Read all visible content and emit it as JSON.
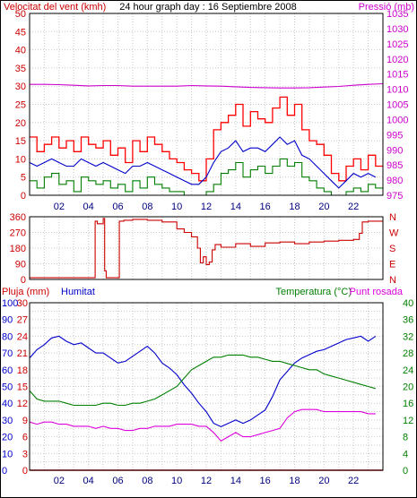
{
  "page": {
    "title": "24 hour graph day : 16 Septiembre 2008",
    "border_color": "#000000"
  },
  "chart_data": [
    {
      "type": "line",
      "panel": "wind-pressure",
      "title": "24 hour graph day : 16 Septiembre 2008",
      "ylabel_left": "Velocitat del vent (kmh)",
      "ylabel_right": "Pressió (mb)",
      "x_ticks": [
        "02",
        "04",
        "06",
        "08",
        "10",
        "12",
        "14",
        "16",
        "18",
        "20",
        "22"
      ],
      "xlim": [
        0,
        24
      ],
      "ylim_left": [
        0,
        50
      ],
      "ylim_right": [
        975,
        1035
      ],
      "yticks_left": [
        0,
        5,
        10,
        15,
        20,
        25,
        30,
        35,
        40,
        45,
        50
      ],
      "yticks_right": [
        975,
        980,
        985,
        990,
        995,
        1000,
        1005,
        1010,
        1015,
        1020,
        1025,
        1030,
        1035
      ],
      "grid": true,
      "series": [
        {
          "key": "gust",
          "axis": "left",
          "color": "#ff0000",
          "step": true,
          "x": [
            0,
            0.5,
            1,
            1.5,
            2,
            2.5,
            3,
            3.5,
            4,
            4.5,
            5,
            5.5,
            6,
            6.5,
            7,
            7.5,
            8,
            8.5,
            9,
            9.5,
            10,
            10.5,
            11,
            11.5,
            12,
            12.5,
            13,
            13.5,
            14,
            14.5,
            15,
            15.5,
            16,
            16.5,
            17,
            17.5,
            18,
            18.5,
            19,
            19.5,
            20,
            20.5,
            21,
            21.5,
            22,
            22.5,
            23,
            23.5
          ],
          "y": [
            16,
            12,
            14,
            16,
            13,
            15,
            12,
            16,
            14,
            13,
            15,
            11,
            13,
            9,
            15,
            12,
            16,
            14,
            12,
            10,
            9,
            7,
            6,
            4,
            10,
            18,
            20,
            22,
            25,
            19,
            23,
            21,
            20,
            24,
            27,
            22,
            25,
            18,
            15,
            14,
            11,
            6,
            4,
            8,
            10,
            7,
            11,
            8
          ]
        },
        {
          "key": "average",
          "axis": "left",
          "color": "#0000cc",
          "x": [
            0,
            0.5,
            1,
            1.5,
            2,
            2.5,
            3,
            3.5,
            4,
            4.5,
            5,
            5.5,
            6,
            6.5,
            7,
            7.5,
            8,
            8.5,
            9,
            9.5,
            10,
            10.5,
            11,
            11.5,
            12,
            12.5,
            13,
            13.5,
            14,
            14.5,
            15,
            15.5,
            16,
            16.5,
            17,
            17.5,
            18,
            18.5,
            19,
            19.5,
            20,
            20.5,
            21,
            21.5,
            22,
            22.5,
            23,
            23.5
          ],
          "y": [
            9,
            8,
            9,
            10,
            9,
            8,
            8,
            10,
            9,
            8,
            9,
            8,
            7,
            6,
            8,
            8,
            9,
            8,
            7,
            6,
            5,
            4,
            3,
            3,
            5,
            9,
            12,
            13,
            15,
            12,
            13,
            13,
            12,
            14,
            16,
            14,
            15,
            11,
            10,
            8,
            6,
            4,
            2,
            4,
            6,
            5,
            6,
            5
          ]
        },
        {
          "key": "minimum",
          "axis": "left",
          "color": "#008000",
          "step": true,
          "x": [
            0,
            0.5,
            1,
            1.5,
            2,
            2.5,
            3,
            3.5,
            4,
            4.5,
            5,
            5.5,
            6,
            6.5,
            7,
            7.5,
            8,
            8.5,
            9,
            9.5,
            10,
            10.5,
            11,
            11.5,
            12,
            12.5,
            13,
            13.5,
            14,
            14.5,
            15,
            15.5,
            16,
            16.5,
            17,
            17.5,
            18,
            18.5,
            19,
            19.5,
            20,
            20.5,
            21,
            21.5,
            22,
            22.5,
            23,
            23.5
          ],
          "y": [
            4,
            2,
            5,
            6,
            3,
            4,
            1,
            5,
            4,
            3,
            4,
            2,
            3,
            1,
            4,
            2,
            5,
            3,
            2,
            1,
            1,
            0,
            0,
            0,
            1,
            3,
            6,
            7,
            9,
            5,
            7,
            8,
            6,
            8,
            10,
            8,
            9,
            5,
            4,
            2,
            1,
            0,
            0,
            1,
            2,
            1,
            3,
            2
          ]
        },
        {
          "key": "pressure",
          "axis": "right",
          "color": "#cc00cc",
          "x": [
            0,
            1,
            2,
            3,
            4,
            5,
            6,
            7,
            8,
            9,
            10,
            11,
            12,
            13,
            14,
            15,
            16,
            17,
            18,
            19,
            20,
            21,
            22,
            23,
            24
          ],
          "y": [
            1011.6,
            1011.6,
            1011.5,
            1011.3,
            1011.1,
            1011.2,
            1011.2,
            1011.0,
            1011.0,
            1011.0,
            1011.0,
            1011.2,
            1011.1,
            1011.0,
            1010.8,
            1010.6,
            1010.5,
            1010.4,
            1010.4,
            1010.5,
            1010.7,
            1010.9,
            1011.3,
            1011.6,
            1011.8
          ]
        }
      ]
    },
    {
      "type": "line",
      "panel": "wind-direction",
      "ylim": [
        0,
        360
      ],
      "yticks_left": [
        "0",
        "90",
        "180",
        "270",
        "360"
      ],
      "yticks_right": [
        "N",
        "E",
        "S",
        "W",
        "N"
      ],
      "grid": true,
      "series": [
        {
          "key": "direction",
          "color": "#cc0000",
          "step": true,
          "x": [
            0,
            4.3,
            4.45,
            4.6,
            5.0,
            5.1,
            5.2,
            6.0,
            6.1,
            6.4,
            7,
            8,
            9,
            10,
            10.5,
            11,
            11.4,
            11.6,
            11.8,
            12,
            12.2,
            12.4,
            12.6,
            13,
            14,
            15,
            16,
            17,
            18,
            19,
            20,
            21,
            22,
            22.4,
            22.6,
            23,
            24
          ],
          "y": [
            10,
            10,
            335,
            320,
            350,
            50,
            10,
            10,
            335,
            340,
            345,
            340,
            330,
            290,
            270,
            245,
            180,
            95,
            130,
            85,
            100,
            170,
            200,
            185,
            205,
            190,
            210,
            215,
            205,
            215,
            220,
            225,
            230,
            265,
            330,
            335,
            335
          ]
        }
      ]
    },
    {
      "type": "line",
      "panel": "rain-humidity-temp",
      "label_rain": "Pluja (mm)",
      "label_humidity": "Humitat",
      "label_temperature": "Temperatura (°C)",
      "label_dewpoint": "Punt rosada",
      "yticks_rain": [
        0,
        3,
        6,
        9,
        12,
        15,
        18,
        21,
        24,
        27,
        30
      ],
      "yticks_humidity": [
        0,
        10,
        20,
        30,
        40,
        50,
        60,
        70,
        80,
        90,
        100
      ],
      "yticks_temp": [
        0,
        4,
        8,
        12,
        16,
        20,
        24,
        28,
        32,
        36,
        40
      ],
      "ylim_temp": [
        0,
        40
      ],
      "ylim_humidity": [
        0,
        100
      ],
      "grid": true,
      "series": [
        {
          "key": "humidity",
          "axis": "humidity",
          "color": "#0000cc",
          "x": [
            0,
            0.5,
            1,
            1.5,
            2,
            2.5,
            3,
            3.5,
            4,
            4.5,
            5,
            5.5,
            6,
            6.5,
            7,
            7.5,
            8,
            8.5,
            9,
            9.5,
            10,
            10.5,
            11,
            11.5,
            12,
            12.5,
            13,
            13.5,
            14,
            14.5,
            15,
            15.5,
            16,
            16.5,
            17,
            17.5,
            18,
            18.5,
            19,
            19.5,
            20,
            20.5,
            21,
            21.5,
            22,
            22.5,
            23,
            23.5
          ],
          "y": [
            67,
            72,
            75,
            79,
            80,
            77,
            75,
            76,
            73,
            70,
            70,
            67,
            64,
            65,
            68,
            71,
            74,
            70,
            64,
            61,
            57,
            51,
            46,
            40,
            35,
            28,
            26,
            28,
            30,
            28,
            30,
            33,
            36,
            44,
            54,
            59,
            64,
            67,
            69,
            71,
            72,
            74,
            76,
            78,
            79,
            80,
            77,
            80
          ]
        },
        {
          "key": "temperature",
          "axis": "temp",
          "color": "#008000",
          "x": [
            0,
            0.5,
            1,
            1.5,
            2,
            2.5,
            3,
            3.5,
            4,
            4.5,
            5,
            5.5,
            6,
            6.5,
            7,
            7.5,
            8,
            8.5,
            9,
            9.5,
            10,
            10.5,
            11,
            11.5,
            12,
            12.5,
            13,
            13.5,
            14,
            14.5,
            15,
            15.5,
            16,
            16.5,
            17,
            17.5,
            18,
            18.5,
            19,
            19.5,
            20,
            20.5,
            21,
            21.5,
            22,
            22.5,
            23,
            23.5
          ],
          "y": [
            19,
            17,
            16.5,
            16.5,
            16.5,
            16,
            15.5,
            15.5,
            15.5,
            15.5,
            16,
            16,
            15.5,
            15.5,
            16,
            16,
            16.5,
            17,
            18,
            19,
            20,
            22,
            24,
            25,
            26,
            27,
            27,
            27.5,
            27.5,
            27.5,
            27,
            27,
            26.5,
            26,
            26,
            25.5,
            25,
            24.5,
            24,
            24,
            23,
            22.5,
            22,
            21.5,
            21,
            20.5,
            20,
            19.5
          ]
        },
        {
          "key": "dewpoint",
          "axis": "temp",
          "color": "#dd00dd",
          "x": [
            0,
            0.5,
            1,
            1.5,
            2,
            2.5,
            3,
            3.5,
            4,
            4.5,
            5,
            5.5,
            6,
            6.5,
            7,
            7.5,
            8,
            8.5,
            9,
            9.5,
            10,
            10.5,
            11,
            11.5,
            12,
            12.5,
            13,
            13.5,
            14,
            14.5,
            15,
            15.5,
            16,
            16.5,
            17,
            17.5,
            18,
            18.5,
            19,
            19.5,
            20,
            20.5,
            21,
            21.5,
            22,
            22.5,
            23,
            23.5
          ],
          "y": [
            11.5,
            11,
            11.5,
            11.5,
            11,
            11,
            10.5,
            10.5,
            10.5,
            10,
            10.5,
            10,
            10,
            9.5,
            9.5,
            10,
            10,
            10.5,
            10.5,
            10.5,
            11,
            11,
            11,
            10.5,
            10.5,
            9,
            7,
            8,
            9,
            8,
            8,
            8.5,
            9,
            9.5,
            10,
            12.5,
            14,
            14.5,
            14.5,
            14.5,
            14,
            14,
            14,
            14,
            14,
            14,
            13.5,
            13.5
          ]
        },
        {
          "key": "rain",
          "axis": "rain",
          "color": "#dd0000",
          "x": [
            0,
            24
          ],
          "y": [
            0,
            0
          ]
        }
      ]
    }
  ]
}
